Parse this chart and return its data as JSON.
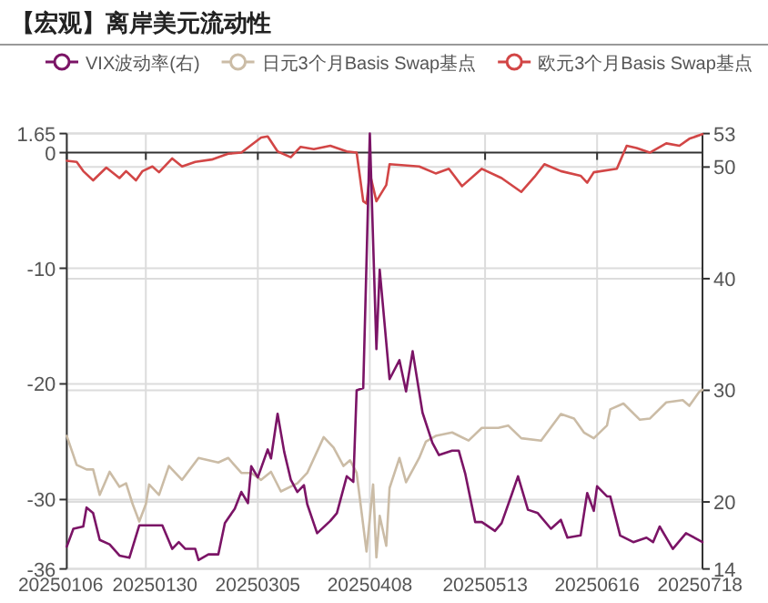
{
  "chart_data": {
    "type": "line",
    "title": "【宏观】离岸美元流动性",
    "legend": "top",
    "grid": true,
    "line_style": "solid",
    "xlim": [
      "2025-01-06",
      "2025-07-18"
    ],
    "xticks": [
      {
        "value": "2025-01-06",
        "label": "20250106"
      },
      {
        "value": "2025-01-30",
        "label": "20250130"
      },
      {
        "value": "2025-03-05",
        "label": "20250305"
      },
      {
        "value": "2025-04-08",
        "label": "20250408"
      },
      {
        "value": "2025-05-13",
        "label": "20250513"
      },
      {
        "value": "2025-06-16",
        "label": "20250616"
      },
      {
        "value": "2025-07-18",
        "label": "20250718"
      }
    ],
    "ylim": [
      -36,
      1.65
    ],
    "yticks": [
      1.65,
      0,
      -10,
      -20,
      -30,
      -36
    ],
    "y2lim": [
      14,
      53
    ],
    "y2ticks": [
      53,
      50,
      40,
      30,
      20,
      14
    ],
    "series": [
      {
        "name": "VIX波动率(右)",
        "color": "#7b1466",
        "axis": "y2",
        "x": [
          "2025-01-06",
          "2025-01-08",
          "2025-01-11",
          "2025-01-12",
          "2025-01-14",
          "2025-01-16",
          "2025-01-19",
          "2025-01-22",
          "2025-01-25",
          "2025-01-28",
          "2025-02-04",
          "2025-02-07",
          "2025-02-09",
          "2025-02-11",
          "2025-02-14",
          "2025-02-15",
          "2025-02-18",
          "2025-02-21",
          "2025-02-23",
          "2025-02-26",
          "2025-02-28",
          "2025-03-02",
          "2025-03-03",
          "2025-03-05",
          "2025-03-08",
          "2025-03-09",
          "2025-03-11",
          "2025-03-13",
          "2025-03-15",
          "2025-03-17",
          "2025-03-19",
          "2025-03-20",
          "2025-03-23",
          "2025-03-27",
          "2025-03-29",
          "2025-04-01",
          "2025-04-03",
          "2025-04-04",
          "2025-04-06",
          "2025-04-08",
          "2025-04-10",
          "2025-04-11",
          "2025-04-14",
          "2025-04-17",
          "2025-04-19",
          "2025-04-21",
          "2025-04-24",
          "2025-04-27",
          "2025-04-29",
          "2025-05-03",
          "2025-05-05",
          "2025-05-07",
          "2025-05-10",
          "2025-05-12",
          "2025-05-16",
          "2025-05-18",
          "2025-05-21",
          "2025-05-23",
          "2025-05-26",
          "2025-05-29",
          "2025-06-02",
          "2025-06-05",
          "2025-06-07",
          "2025-06-11",
          "2025-06-13",
          "2025-06-15",
          "2025-06-16",
          "2025-06-19",
          "2025-06-20",
          "2025-06-23",
          "2025-06-27",
          "2025-07-01",
          "2025-07-03",
          "2025-07-05",
          "2025-07-09",
          "2025-07-13",
          "2025-07-18"
        ],
        "values": [
          16.0,
          17.6,
          17.8,
          19.5,
          19.0,
          16.6,
          16.2,
          15.2,
          15.0,
          17.9,
          17.9,
          15.8,
          16.4,
          15.8,
          15.8,
          14.8,
          15.3,
          15.3,
          18.1,
          19.4,
          20.9,
          19.9,
          23.2,
          22.2,
          24.7,
          23.9,
          27.9,
          24.5,
          22.0,
          20.9,
          21.5,
          19.8,
          17.2,
          18.3,
          19.0,
          22.3,
          21.8,
          30.0,
          30.2,
          53,
          33.7,
          40.8,
          31.0,
          32.7,
          29.9,
          33.5,
          28.0,
          25.3,
          24.2,
          24.6,
          24.6,
          22.5,
          18.2,
          18.2,
          17.4,
          18.1,
          20.6,
          22.3,
          19.3,
          19.0,
          17.6,
          18.4,
          16.8,
          17.0,
          20.8,
          19.2,
          21.4,
          20.5,
          20.5,
          17.0,
          16.4,
          16.8,
          16.4,
          17.8,
          15.8,
          17.2,
          16.4
        ]
      },
      {
        "name": "日元3个月Basis Swap基点",
        "color": "#cbbca6",
        "x": [
          "2025-01-06",
          "2025-01-09",
          "2025-01-12",
          "2025-01-14",
          "2025-01-16",
          "2025-01-19",
          "2025-01-22",
          "2025-01-24",
          "2025-01-26",
          "2025-01-28",
          "2025-01-30",
          "2025-01-31",
          "2025-02-03",
          "2025-02-06",
          "2025-02-10",
          "2025-02-15",
          "2025-02-21",
          "2025-02-24",
          "2025-02-28",
          "2025-03-03",
          "2025-03-06",
          "2025-03-09",
          "2025-03-12",
          "2025-03-17",
          "2025-03-20",
          "2025-03-25",
          "2025-03-28",
          "2025-03-31",
          "2025-04-02",
          "2025-04-04",
          "2025-04-07",
          "2025-04-09",
          "2025-04-10",
          "2025-04-11",
          "2025-04-13",
          "2025-04-14",
          "2025-04-17",
          "2025-04-19",
          "2025-04-23",
          "2025-04-25",
          "2025-04-28",
          "2025-05-03",
          "2025-05-08",
          "2025-05-12",
          "2025-05-17",
          "2025-05-20",
          "2025-05-24",
          "2025-05-30",
          "2025-06-05",
          "2025-06-09",
          "2025-06-12",
          "2025-06-15",
          "2025-06-19",
          "2025-06-20",
          "2025-06-24",
          "2025-06-29",
          "2025-07-02",
          "2025-07-07",
          "2025-07-12",
          "2025-07-14",
          "2025-07-17",
          "2025-07-18"
        ],
        "values": [
          -24.5,
          -27.0,
          -27.4,
          -27.4,
          -29.6,
          -27.6,
          -28.9,
          -28.6,
          -30.4,
          -31.9,
          -30.4,
          -28.7,
          -29.6,
          -27.1,
          -28.3,
          -26.4,
          -26.8,
          -26.4,
          -27.7,
          -27.7,
          -28.3,
          -27.6,
          -29.3,
          -28.6,
          -27.7,
          -24.6,
          -25.5,
          -27.1,
          -26.6,
          -27.7,
          -34.5,
          -28.7,
          -35.0,
          -31.4,
          -34.0,
          -29.0,
          -26.4,
          -28.5,
          -26.4,
          -25.0,
          -24.5,
          -24.2,
          -24.9,
          -23.8,
          -23.8,
          -23.6,
          -24.7,
          -24.9,
          -22.6,
          -23.0,
          -24.2,
          -24.7,
          -23.6,
          -22.2,
          -21.7,
          -23.1,
          -23.0,
          -21.6,
          -21.4,
          -21.9,
          -20.7,
          -20.5
        ]
      },
      {
        "name": "欧元3个月Basis Swap基点",
        "color": "#d24646",
        "x": [
          "2025-01-06",
          "2025-01-09",
          "2025-01-11",
          "2025-01-14",
          "2025-01-18",
          "2025-01-22",
          "2025-01-24",
          "2025-01-27",
          "2025-01-29",
          "2025-02-01",
          "2025-02-03",
          "2025-02-07",
          "2025-02-10",
          "2025-02-14",
          "2025-02-19",
          "2025-02-24",
          "2025-02-28",
          "2025-03-06",
          "2025-03-08",
          "2025-03-11",
          "2025-03-15",
          "2025-03-18",
          "2025-03-22",
          "2025-03-27",
          "2025-04-01",
          "2025-04-04",
          "2025-04-06",
          "2025-04-07",
          "2025-04-08",
          "2025-04-10",
          "2025-04-13",
          "2025-04-14",
          "2025-04-23",
          "2025-04-28",
          "2025-05-02",
          "2025-05-06",
          "2025-05-12",
          "2025-05-18",
          "2025-05-24",
          "2025-05-28",
          "2025-05-31",
          "2025-06-05",
          "2025-06-11",
          "2025-06-13",
          "2025-06-15",
          "2025-06-22",
          "2025-06-25",
          "2025-06-28",
          "2025-07-02",
          "2025-07-07",
          "2025-07-11",
          "2025-07-14",
          "2025-07-18"
        ],
        "values": [
          -0.7,
          -0.8,
          -1.6,
          -2.4,
          -1.3,
          -2.2,
          -1.6,
          -2.4,
          -1.6,
          -1.2,
          -1.7,
          -0.5,
          -1.2,
          -0.8,
          -0.6,
          -0.1,
          0,
          1.3,
          1.4,
          0.1,
          -0.4,
          0.5,
          0.3,
          0.6,
          0.1,
          0,
          -4.2,
          -4.4,
          -1.8,
          -4.2,
          -2.8,
          -1.0,
          -1.2,
          -1.8,
          -1.4,
          -2.9,
          -1.4,
          -2.2,
          -3.4,
          -2.1,
          -1.0,
          -1.6,
          -2.0,
          -2.6,
          -1.7,
          -1.4,
          0.6,
          0.4,
          0,
          0.8,
          0.6,
          1.2,
          1.6
        ]
      }
    ]
  }
}
